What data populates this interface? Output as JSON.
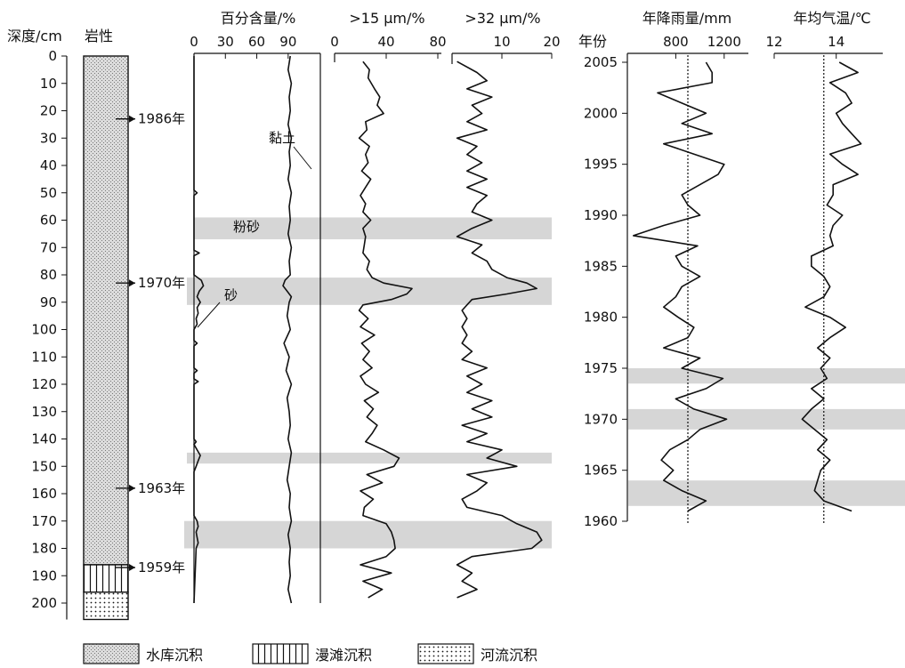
{
  "depth_axis": {
    "label": "深度/cm",
    "ticks": [
      0,
      10,
      20,
      30,
      40,
      50,
      60,
      70,
      80,
      90,
      100,
      110,
      120,
      130,
      140,
      150,
      160,
      170,
      180,
      190,
      200
    ]
  },
  "lithology": {
    "title": "岩性",
    "units": [
      {
        "name": "水库沉积",
        "from": 0,
        "to": 186
      },
      {
        "name": "漫滩沉积",
        "from": 186,
        "to": 196
      },
      {
        "name": "河流沉积",
        "from": 196,
        "to": 206
      }
    ],
    "markers": [
      {
        "label": "1986年",
        "depth": 23
      },
      {
        "label": "1970年",
        "depth": 83
      },
      {
        "label": "1963年",
        "depth": 158
      },
      {
        "label": "1959年",
        "depth": 187
      }
    ]
  },
  "bands": [
    {
      "label": "粉砂",
      "from": 59,
      "to": 67
    },
    {
      "label": "",
      "from": 81,
      "to": 91
    },
    {
      "label": "",
      "from": 145,
      "to": 149
    },
    {
      "label": "",
      "from": 170,
      "to": 180
    }
  ],
  "year_bands": [
    {
      "from": 1973.5,
      "to": 1975
    },
    {
      "from": 1969,
      "to": 1971
    },
    {
      "from": 1961.5,
      "to": 1964
    }
  ],
  "chart_data": [
    {
      "type": "line",
      "title": "百分含量/%",
      "x_ticks": [
        0,
        30,
        60,
        90
      ],
      "xlim": [
        0,
        108
      ],
      "ylabel": "深度/cm",
      "ylim": [
        0,
        206
      ],
      "annotations": [
        "黏土",
        "砂"
      ],
      "series": [
        {
          "name": "黏土",
          "depth": [
            0,
            5,
            10,
            15,
            20,
            25,
            30,
            35,
            40,
            45,
            50,
            55,
            60,
            65,
            70,
            75,
            80,
            82,
            84,
            86,
            88,
            90,
            95,
            100,
            105,
            110,
            115,
            120,
            125,
            130,
            135,
            140,
            145,
            150,
            155,
            160,
            165,
            170,
            175,
            180,
            185,
            190,
            195,
            200
          ],
          "values": [
            92,
            90,
            93,
            91,
            92,
            90,
            93,
            91,
            92,
            90,
            93,
            91,
            92,
            90,
            93,
            91,
            92,
            87,
            85,
            89,
            93,
            91,
            89,
            92,
            86,
            91,
            88,
            93,
            89,
            91,
            92,
            90,
            93,
            91,
            89,
            92,
            91,
            93,
            90,
            92,
            91,
            92,
            90,
            93
          ]
        },
        {
          "name": "砂",
          "depth": [
            0,
            49,
            50,
            51,
            53,
            71,
            72,
            73,
            80,
            82,
            84,
            86,
            88,
            90,
            92,
            94,
            96,
            98,
            100,
            104,
            105,
            106,
            110,
            114,
            115,
            116,
            118,
            119,
            120,
            121,
            140,
            141,
            142,
            144,
            146,
            148,
            150,
            152,
            168,
            170,
            172,
            174,
            176,
            178,
            180,
            200
          ],
          "values": [
            0,
            0,
            3,
            0,
            0,
            0,
            5,
            0,
            0,
            7,
            9,
            5,
            3,
            6,
            3,
            4,
            2,
            3,
            0,
            0,
            3,
            0,
            0,
            0,
            3,
            0,
            0,
            4,
            0,
            0,
            0,
            2,
            0,
            3,
            6,
            4,
            2,
            0,
            0,
            3,
            4,
            2,
            3,
            4,
            2,
            0
          ]
        }
      ]
    },
    {
      "type": "line",
      "title": ">15 μm/%",
      "x_ticks": [
        0,
        40,
        80
      ],
      "xlim": [
        0,
        80
      ],
      "ylim": [
        0,
        206
      ],
      "series": [
        {
          "name": "",
          "depth": [
            2,
            5,
            8,
            12,
            15,
            18,
            21,
            24,
            27,
            30,
            33,
            36,
            39,
            42,
            45,
            48,
            51,
            54,
            57,
            60,
            63,
            66,
            69,
            72,
            75,
            78,
            81,
            83,
            85,
            87,
            89,
            91,
            93,
            96,
            99,
            102,
            105,
            108,
            111,
            114,
            117,
            120,
            123,
            126,
            129,
            132,
            135,
            138,
            141,
            144,
            147,
            150,
            153,
            156,
            159,
            162,
            165,
            168,
            171,
            174,
            177,
            180,
            183,
            186,
            189,
            192,
            195,
            198
          ],
          "values": [
            22,
            27,
            26,
            31,
            35,
            33,
            38,
            24,
            25,
            19,
            27,
            24,
            26,
            21,
            28,
            24,
            20,
            24,
            22,
            28,
            22,
            24,
            23,
            22,
            27,
            25,
            29,
            38,
            60,
            56,
            44,
            22,
            19,
            26,
            20,
            31,
            21,
            27,
            22,
            29,
            20,
            24,
            34,
            23,
            30,
            25,
            33,
            29,
            24,
            38,
            50,
            46,
            25,
            37,
            20,
            30,
            23,
            22,
            40,
            44,
            46,
            47,
            40,
            20,
            44,
            22,
            37,
            26
          ]
        }
      ]
    },
    {
      "type": "line",
      "title": ">32 μm/%",
      "x_ticks": [
        10,
        20
      ],
      "xlim": [
        0,
        20
      ],
      "ylim": [
        0,
        206
      ],
      "series": [
        {
          "name": "",
          "depth": [
            2,
            6,
            9,
            12,
            15,
            18,
            21,
            24,
            27,
            30,
            33,
            36,
            39,
            42,
            45,
            48,
            51,
            54,
            57,
            60,
            63,
            66,
            69,
            72,
            75,
            78,
            81,
            83,
            85,
            87,
            89,
            91,
            93,
            96,
            99,
            102,
            105,
            108,
            111,
            114,
            117,
            120,
            123,
            126,
            129,
            132,
            135,
            138,
            141,
            144,
            147,
            150,
            153,
            156,
            159,
            162,
            165,
            168,
            171,
            174,
            177,
            180,
            183,
            186,
            189,
            192,
            195,
            198
          ],
          "values": [
            1,
            5,
            7,
            3,
            8,
            4,
            6,
            3,
            7,
            1,
            5,
            3,
            6,
            3,
            7,
            3,
            7,
            5,
            4,
            8,
            4,
            1,
            6,
            4,
            7,
            8,
            11,
            15,
            17,
            11,
            4,
            3,
            2,
            3,
            2,
            3,
            2,
            4,
            2,
            7,
            3,
            6,
            3,
            8,
            4,
            8,
            2,
            7,
            3,
            10,
            7,
            13,
            3,
            7,
            5,
            2,
            3,
            10,
            13,
            17,
            18,
            16,
            4,
            1,
            4,
            2,
            5,
            1
          ]
        }
      ]
    },
    {
      "type": "line",
      "title": "年降雨量/mm",
      "x_ticks": [
        800,
        1200
      ],
      "xlim": [
        400,
        1400
      ],
      "ylabel": "年份",
      "y_ticks": [
        1960,
        1965,
        1970,
        1975,
        1980,
        1985,
        1990,
        1995,
        2000,
        2005
      ],
      "ylim": [
        1960,
        2005.5
      ],
      "reference_line": 900,
      "series": [
        {
          "name": "",
          "year": [
            1961,
            1962,
            1963,
            1964,
            1965,
            1966,
            1967,
            1968,
            1969,
            1970,
            1971,
            1972,
            1973,
            1974,
            1975,
            1976,
            1977,
            1978,
            1979,
            1980,
            1981,
            1982,
            1983,
            1984,
            1985,
            1986,
            1987,
            1988,
            1989,
            1990,
            1991,
            1992,
            1993,
            1994,
            1995,
            1996,
            1997,
            1998,
            1999,
            2000,
            2001,
            2002,
            2003,
            2004,
            2005
          ],
          "values": [
            900,
            1050,
            850,
            700,
            780,
            680,
            750,
            900,
            1000,
            1220,
            950,
            800,
            1050,
            1190,
            850,
            1000,
            700,
            900,
            950,
            820,
            700,
            800,
            850,
            1000,
            850,
            800,
            980,
            450,
            700,
            1000,
            900,
            850,
            1000,
            1150,
            1200,
            950,
            700,
            1100,
            850,
            1050,
            850,
            650,
            1100,
            1100,
            1050
          ]
        }
      ]
    },
    {
      "type": "line",
      "title": "年均气温/℃",
      "x_ticks": [
        12,
        14
      ],
      "xlim": [
        12,
        15.5
      ],
      "ylim": [
        1960,
        2005.5
      ],
      "reference_line": 13.6,
      "series": [
        {
          "name": "",
          "year": [
            1961,
            1962,
            1963,
            1964,
            1965,
            1966,
            1967,
            1968,
            1969,
            1970,
            1971,
            1972,
            1973,
            1974,
            1975,
            1976,
            1977,
            1978,
            1979,
            1980,
            1981,
            1982,
            1983,
            1984,
            1985,
            1986,
            1987,
            1988,
            1989,
            1990,
            1991,
            1992,
            1993,
            1994,
            1995,
            1996,
            1997,
            1998,
            1999,
            2000,
            2001,
            2002,
            2003,
            2004,
            2005
          ],
          "values": [
            14.5,
            13.6,
            13.3,
            13.4,
            13.5,
            13.8,
            13.4,
            13.7,
            13.3,
            12.9,
            13.2,
            13.6,
            13.2,
            13.7,
            13.5,
            13.8,
            13.4,
            13.8,
            14.3,
            13.8,
            13.0,
            13.6,
            13.8,
            13.6,
            13.2,
            13.2,
            13.9,
            13.8,
            13.9,
            14.2,
            13.7,
            13.9,
            13.9,
            14.7,
            14.2,
            13.8,
            14.8,
            14.5,
            14.2,
            14.0,
            14.5,
            14.3,
            13.8,
            14.7,
            14.1
          ]
        }
      ]
    }
  ]
}
